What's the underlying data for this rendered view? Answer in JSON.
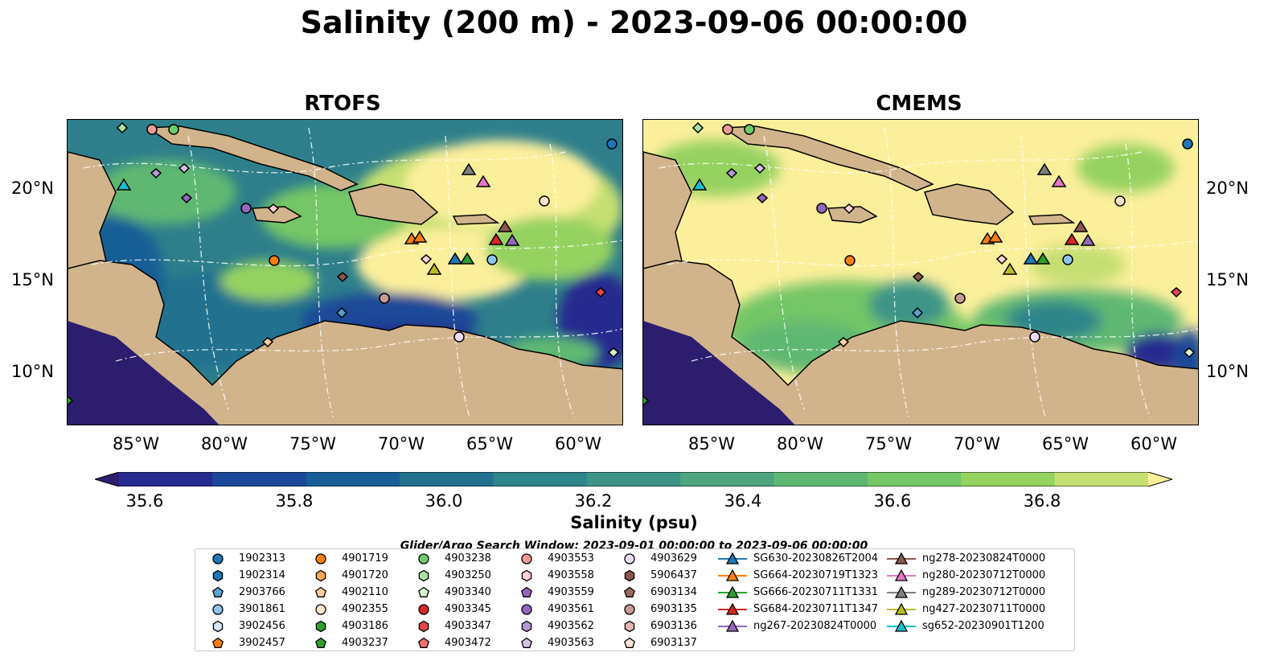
{
  "title": "Salinity (200 m) - 2023-09-06 00:00:00",
  "panels": [
    {
      "title": "RTOFS"
    },
    {
      "title": "CMEMS"
    }
  ],
  "axes": {
    "x_ticks": [
      "85°W",
      "80°W",
      "75°W",
      "70°W",
      "65°W",
      "60°W"
    ],
    "y_ticks": [
      "20°N",
      "15°N",
      "10°N"
    ]
  },
  "colorbar": {
    "label": "Salinity (psu)",
    "ticks": [
      "35.6",
      "35.8",
      "36.0",
      "36.2",
      "36.4",
      "36.6",
      "36.8"
    ],
    "colors": [
      "#2c1d6e",
      "#262b8f",
      "#1a4898",
      "#175e96",
      "#20728f",
      "#2e858a",
      "#3c9487",
      "#4ea580",
      "#5fb872",
      "#74c666",
      "#95d260",
      "#c6df72",
      "#fcef9b"
    ],
    "land_color": "#d2b48c",
    "shelf_color": "#97b6e0"
  },
  "legend": {
    "title": "Glider/Argo Search Window: 2023-09-01 00:00:00 to 2023-09-06 00:00:00",
    "columns": [
      [
        {
          "label": "1902313",
          "marker": "circle",
          "color": "#1f77b4"
        },
        {
          "label": "1902314",
          "marker": "hexagon",
          "color": "#1f77b4"
        },
        {
          "label": "2903766",
          "marker": "pentagon",
          "color": "#5aa0d0"
        },
        {
          "label": "3901861",
          "marker": "circle",
          "color": "#8ec4ea"
        },
        {
          "label": "3902456",
          "marker": "hexagon",
          "color": "#cfe6f5"
        },
        {
          "label": "3902457",
          "marker": "pentagon",
          "color": "#ff7f0e"
        }
      ],
      [
        {
          "label": "4901719",
          "marker": "circle",
          "color": "#ff7f0e"
        },
        {
          "label": "4901720",
          "marker": "hexagon",
          "color": "#ffa857"
        },
        {
          "label": "4902110",
          "marker": "pentagon",
          "color": "#ffcfa0"
        },
        {
          "label": "4902355",
          "marker": "circle",
          "color": "#ffe6cc"
        },
        {
          "label": "4903186",
          "marker": "hexagon",
          "color": "#2ca02c"
        },
        {
          "label": "4903237",
          "marker": "pentagon",
          "color": "#2ca02c"
        }
      ],
      [
        {
          "label": "4903238",
          "marker": "circle",
          "color": "#6ccc6c"
        },
        {
          "label": "4903250",
          "marker": "hexagon",
          "color": "#a8e4a0"
        },
        {
          "label": "4903340",
          "marker": "pentagon",
          "color": "#d8f4d0"
        },
        {
          "label": "4903345",
          "marker": "circle",
          "color": "#d62728"
        },
        {
          "label": "4903347",
          "marker": "hexagon",
          "color": "#e04848"
        },
        {
          "label": "4903472",
          "marker": "pentagon",
          "color": "#f07070"
        }
      ],
      [
        {
          "label": "4903553",
          "marker": "circle",
          "color": "#f29a9a"
        },
        {
          "label": "4903558",
          "marker": "hexagon",
          "color": "#fbd2d2"
        },
        {
          "label": "4903559",
          "marker": "pentagon",
          "color": "#9467bd"
        },
        {
          "label": "4903561",
          "marker": "circle",
          "color": "#9467bd"
        },
        {
          "label": "4903562",
          "marker": "hexagon",
          "color": "#b49ad4"
        },
        {
          "label": "4903563",
          "marker": "pentagon",
          "color": "#d2c0e8"
        }
      ],
      [
        {
          "label": "4903629",
          "marker": "circle",
          "color": "#ecdcf6"
        },
        {
          "label": "5906437",
          "marker": "hexagon",
          "color": "#8c564b"
        },
        {
          "label": "6903134",
          "marker": "pentagon",
          "color": "#9c6a5e"
        },
        {
          "label": "6903135",
          "marker": "circle",
          "color": "#c49c94"
        },
        {
          "label": "6903136",
          "marker": "hexagon",
          "color": "#e0b8ac"
        },
        {
          "label": "6903137",
          "marker": "pentagon",
          "color": "#fbe0d8"
        }
      ],
      [
        {
          "label": "SG630-20230826T2004",
          "marker": "triangle-line",
          "color": "#1f77b4"
        },
        {
          "label": "SG664-20230719T1323",
          "marker": "triangle-line",
          "color": "#ff7f0e"
        },
        {
          "label": "SG666-20230711T1331",
          "marker": "triangle-line",
          "color": "#2ca02c"
        },
        {
          "label": "SG684-20230711T1347",
          "marker": "triangle-line",
          "color": "#d62728"
        },
        {
          "label": "ng267-20230824T0000",
          "marker": "triangle-line",
          "color": "#9467bd"
        }
      ],
      [
        {
          "label": "ng278-20230824T0000",
          "marker": "triangle-line",
          "color": "#8c564b"
        },
        {
          "label": "ng280-20230712T0000",
          "marker": "triangle-line",
          "color": "#e377c2"
        },
        {
          "label": "ng289-20230712T0000",
          "marker": "triangle-line",
          "color": "#7f7f7f"
        },
        {
          "label": "ng427-20230711T0000",
          "marker": "triangle-line",
          "color": "#bcbd22"
        },
        {
          "label": "sg652-20230901T1200",
          "marker": "triangle-line",
          "color": "#17becf"
        }
      ]
    ]
  }
}
